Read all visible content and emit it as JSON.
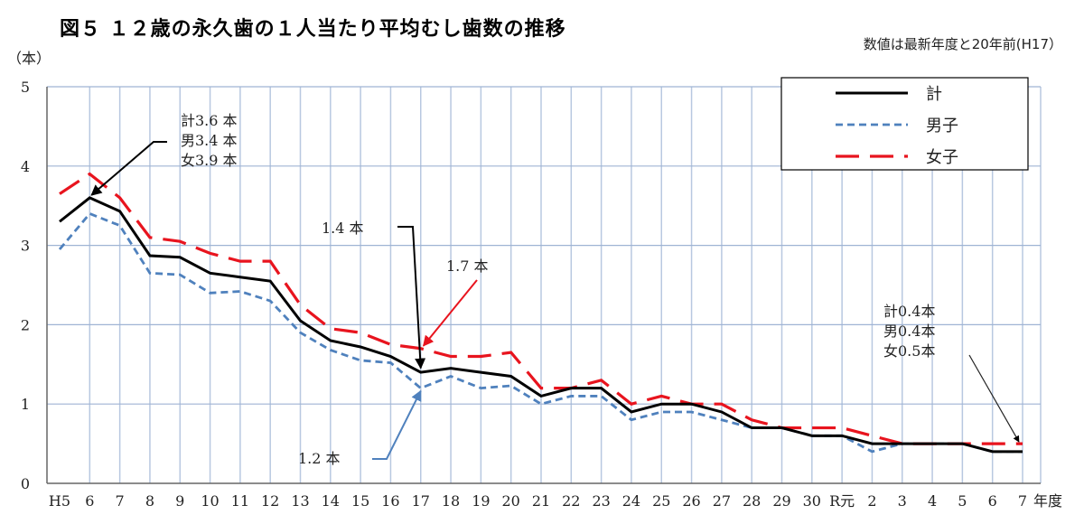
{
  "chart_data": {
    "type": "line",
    "title": "図５ １２歳の永久歯の１人当たり平均むし歯数の推移",
    "note": "数値は最新年度と20年前(H17）",
    "ylabel": "（本）",
    "xlabel": "年度",
    "ylim": [
      0,
      5
    ],
    "yticks": [
      "0",
      "1",
      "2",
      "3",
      "4",
      "5"
    ],
    "grid": true,
    "legend_position": "top-right",
    "categories": [
      "H5",
      "6",
      "7",
      "8",
      "9",
      "10",
      "11",
      "12",
      "13",
      "14",
      "15",
      "16",
      "17",
      "18",
      "19",
      "20",
      "21",
      "22",
      "23",
      "24",
      "25",
      "26",
      "27",
      "28",
      "29",
      "30",
      "R元",
      "2",
      "3",
      "4",
      "5",
      "6",
      "7"
    ],
    "series": [
      {
        "name": "計",
        "color": "#000000",
        "dash": "solid",
        "values": [
          3.3,
          3.6,
          3.43,
          2.87,
          2.85,
          2.65,
          2.6,
          2.55,
          2.05,
          1.8,
          1.72,
          1.6,
          1.4,
          1.45,
          1.4,
          1.35,
          1.1,
          1.2,
          1.2,
          0.9,
          1.0,
          1.0,
          0.9,
          0.7,
          0.7,
          0.6,
          0.6,
          0.5,
          0.5,
          0.5,
          0.5,
          0.4,
          0.4
        ]
      },
      {
        "name": "男子",
        "color": "#4f81bd",
        "dash": "short",
        "values": [
          2.95,
          3.4,
          3.25,
          2.65,
          2.63,
          2.4,
          2.42,
          2.3,
          1.9,
          1.68,
          1.55,
          1.52,
          1.2,
          1.35,
          1.2,
          1.23,
          1.0,
          1.1,
          1.1,
          0.8,
          0.9,
          0.9,
          0.8,
          0.7,
          0.7,
          0.6,
          0.6,
          0.4,
          0.5,
          0.5,
          0.5,
          0.4,
          0.4
        ]
      },
      {
        "name": "女子",
        "color": "#e8141e",
        "dash": "long",
        "values": [
          3.65,
          3.9,
          3.6,
          3.1,
          3.05,
          2.9,
          2.8,
          2.8,
          2.25,
          1.95,
          1.9,
          1.75,
          1.7,
          1.6,
          1.6,
          1.65,
          1.2,
          1.2,
          1.3,
          1.0,
          1.1,
          1.0,
          1.0,
          0.8,
          0.7,
          0.7,
          0.7,
          0.6,
          0.5,
          0.5,
          0.5,
          0.5,
          0.5
        ]
      }
    ],
    "annotations": {
      "h5": [
        "計3.6 本",
        "男3.4 本",
        "女3.9 本"
      ],
      "h17_total": "1.4 本",
      "h17_female": "1.7 本",
      "h17_male": "1.2 本",
      "r7": [
        "計0.4本",
        "男0.4本",
        "女0.5本"
      ]
    }
  }
}
